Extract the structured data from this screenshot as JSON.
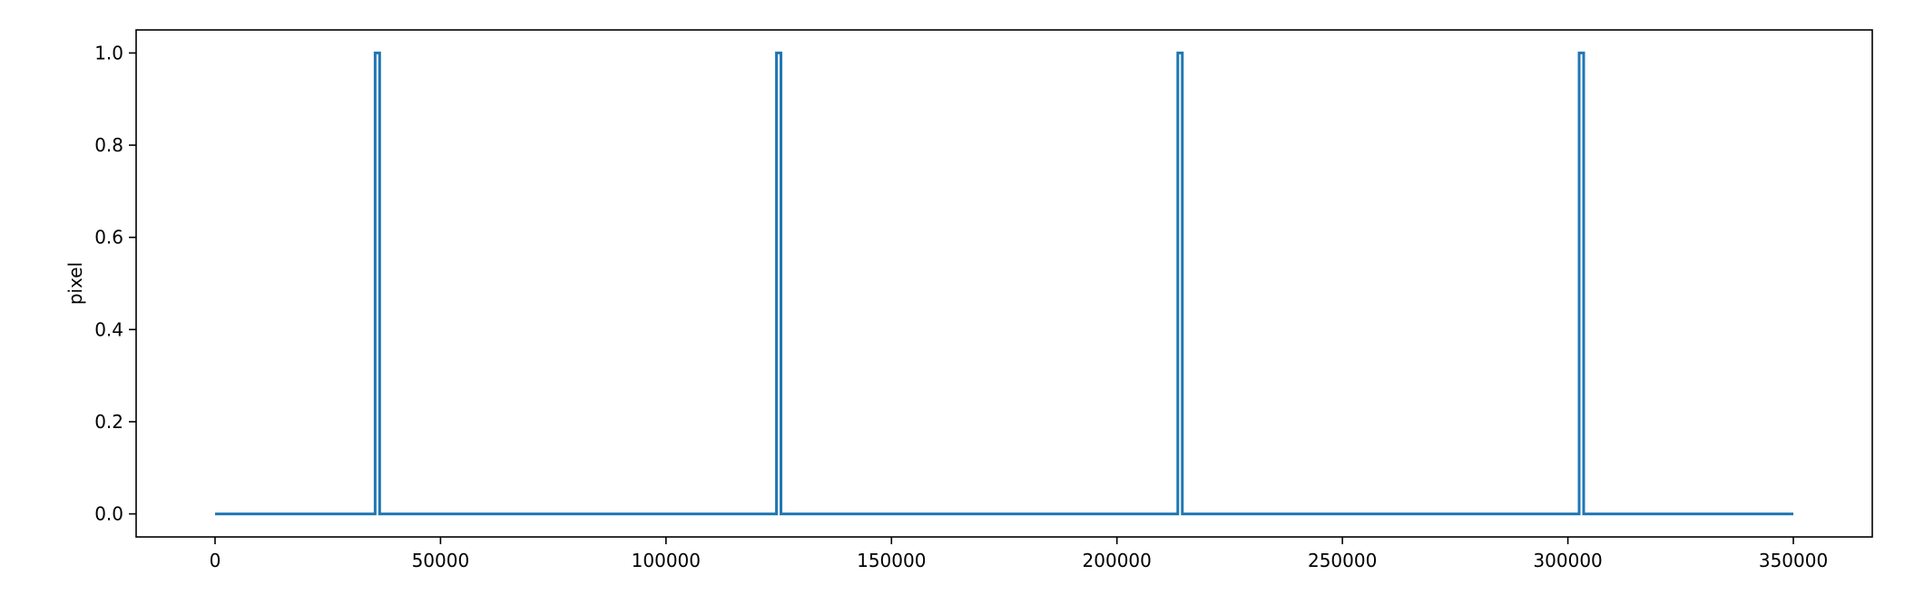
{
  "chart_data": {
    "type": "line",
    "title": "",
    "xlabel": "",
    "ylabel": "pixel",
    "xlim": [
      -17500,
      367500
    ],
    "ylim": [
      -0.05,
      1.05
    ],
    "xticks": [
      0,
      50000,
      100000,
      150000,
      200000,
      250000,
      300000,
      350000
    ],
    "xtick_labels": [
      "0",
      "50000",
      "100000",
      "150000",
      "200000",
      "250000",
      "300000",
      "350000"
    ],
    "yticks": [
      0.0,
      0.2,
      0.4,
      0.6,
      0.8,
      1.0
    ],
    "ytick_labels": [
      "0.0",
      "0.2",
      "0.4",
      "0.6",
      "0.8",
      "1.0"
    ],
    "grid": false,
    "legend": "none",
    "series": [
      {
        "color": "#1f77b4",
        "x": [
          0,
          35500,
          35500,
          36500,
          36500,
          124500,
          124500,
          125500,
          125500,
          213500,
          213500,
          214500,
          214500,
          302500,
          302500,
          303500,
          303500,
          350000
        ],
        "y": [
          0,
          0,
          1,
          1,
          0,
          0,
          1,
          1,
          0,
          0,
          1,
          1,
          0,
          0,
          1,
          1,
          0,
          0
        ]
      }
    ]
  }
}
